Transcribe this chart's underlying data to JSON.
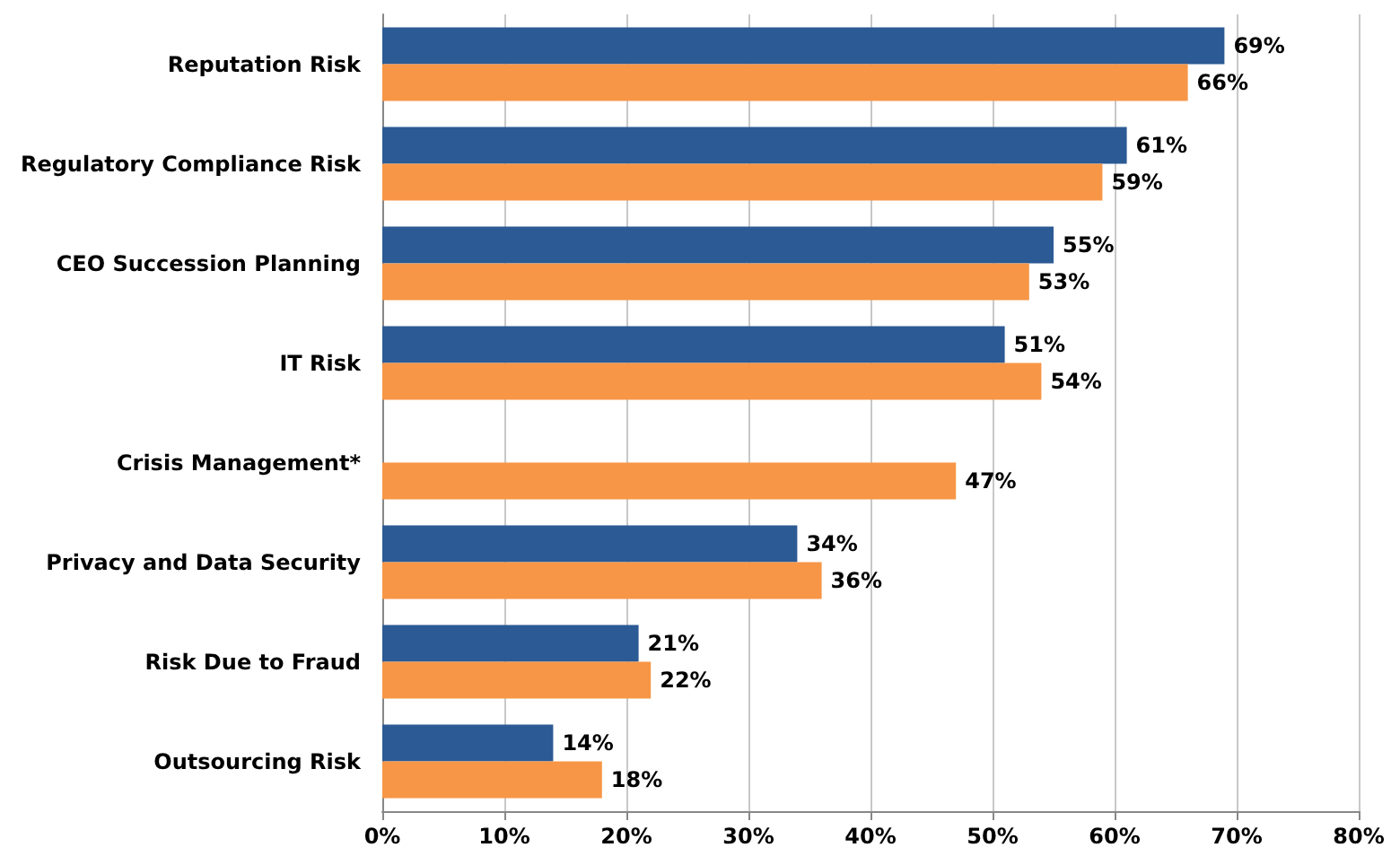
{
  "chart_data": {
    "type": "bar",
    "orientation": "horizontal",
    "categories": [
      "Reputation Risk",
      "Regulatory Compliance Risk",
      "CEO Succession Planning",
      "IT Risk",
      "Crisis Management*",
      "Privacy and Data Security",
      "Risk Due to Fraud",
      "Outsourcing Risk"
    ],
    "series": [
      {
        "color": "#2c5a94",
        "values": [
          69,
          61,
          55,
          51,
          null,
          34,
          21,
          14
        ],
        "value_labels": [
          "69%",
          "61%",
          "55%",
          "51%",
          null,
          "34%",
          "21%",
          "14%"
        ]
      },
      {
        "color": "#f79646",
        "values": [
          66,
          59,
          53,
          54,
          47,
          36,
          22,
          18
        ],
        "value_labels": [
          "66%",
          "59%",
          "53%",
          "54%",
          "47%",
          "36%",
          "22%",
          "18%"
        ]
      }
    ],
    "xlim": [
      0,
      80
    ],
    "xticks": [
      {
        "value": 0,
        "label": "0%"
      },
      {
        "value": 10,
        "label": "10%"
      },
      {
        "value": 20,
        "label": "20%"
      },
      {
        "value": 30,
        "label": "30%"
      },
      {
        "value": 40,
        "label": "40%"
      },
      {
        "value": 50,
        "label": "50%"
      },
      {
        "value": 60,
        "label": "60%"
      },
      {
        "value": 70,
        "label": "70%"
      },
      {
        "value": 80,
        "label": "80%"
      }
    ],
    "grid": "x"
  }
}
